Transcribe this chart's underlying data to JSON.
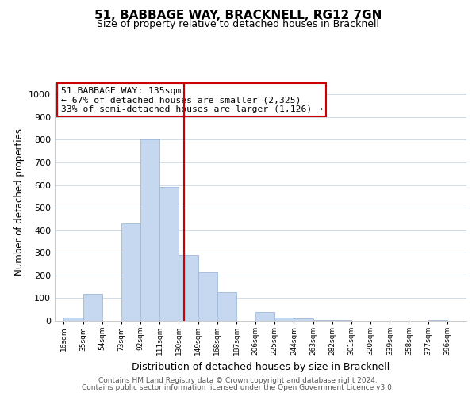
{
  "title": "51, BABBAGE WAY, BRACKNELL, RG12 7GN",
  "subtitle": "Size of property relative to detached houses in Bracknell",
  "xlabel": "Distribution of detached houses by size in Bracknell",
  "ylabel": "Number of detached properties",
  "bar_edges": [
    16,
    35,
    54,
    73,
    92,
    111,
    130,
    149,
    168,
    187,
    206,
    225,
    244,
    263,
    282,
    301,
    320,
    339,
    358,
    377,
    396
  ],
  "bar_heights": [
    15,
    120,
    0,
    430,
    800,
    590,
    290,
    215,
    125,
    0,
    40,
    15,
    10,
    5,
    5,
    0,
    0,
    0,
    0,
    5
  ],
  "bar_color": "#c5d8f0",
  "bar_edgecolor": "#a0b8d8",
  "property_line_x": 135,
  "property_line_color": "#cc0000",
  "annotation_title": "51 BABBAGE WAY: 135sqm",
  "annotation_line1": "← 67% of detached houses are smaller (2,325)",
  "annotation_line2": "33% of semi-detached houses are larger (1,126) →",
  "annotation_box_edgecolor": "#cc0000",
  "annotation_box_facecolor": "#ffffff",
  "ylim": [
    0,
    1050
  ],
  "xlim_min": 7,
  "xlim_max": 415,
  "tick_labels": [
    "16sqm",
    "35sqm",
    "54sqm",
    "73sqm",
    "92sqm",
    "111sqm",
    "130sqm",
    "149sqm",
    "168sqm",
    "187sqm",
    "206sqm",
    "225sqm",
    "244sqm",
    "263sqm",
    "282sqm",
    "301sqm",
    "320sqm",
    "339sqm",
    "358sqm",
    "377sqm",
    "396sqm"
  ],
  "footer_line1": "Contains HM Land Registry data © Crown copyright and database right 2024.",
  "footer_line2": "Contains public sector information licensed under the Open Government Licence v3.0.",
  "background_color": "#ffffff",
  "grid_color": "#d0dde8"
}
